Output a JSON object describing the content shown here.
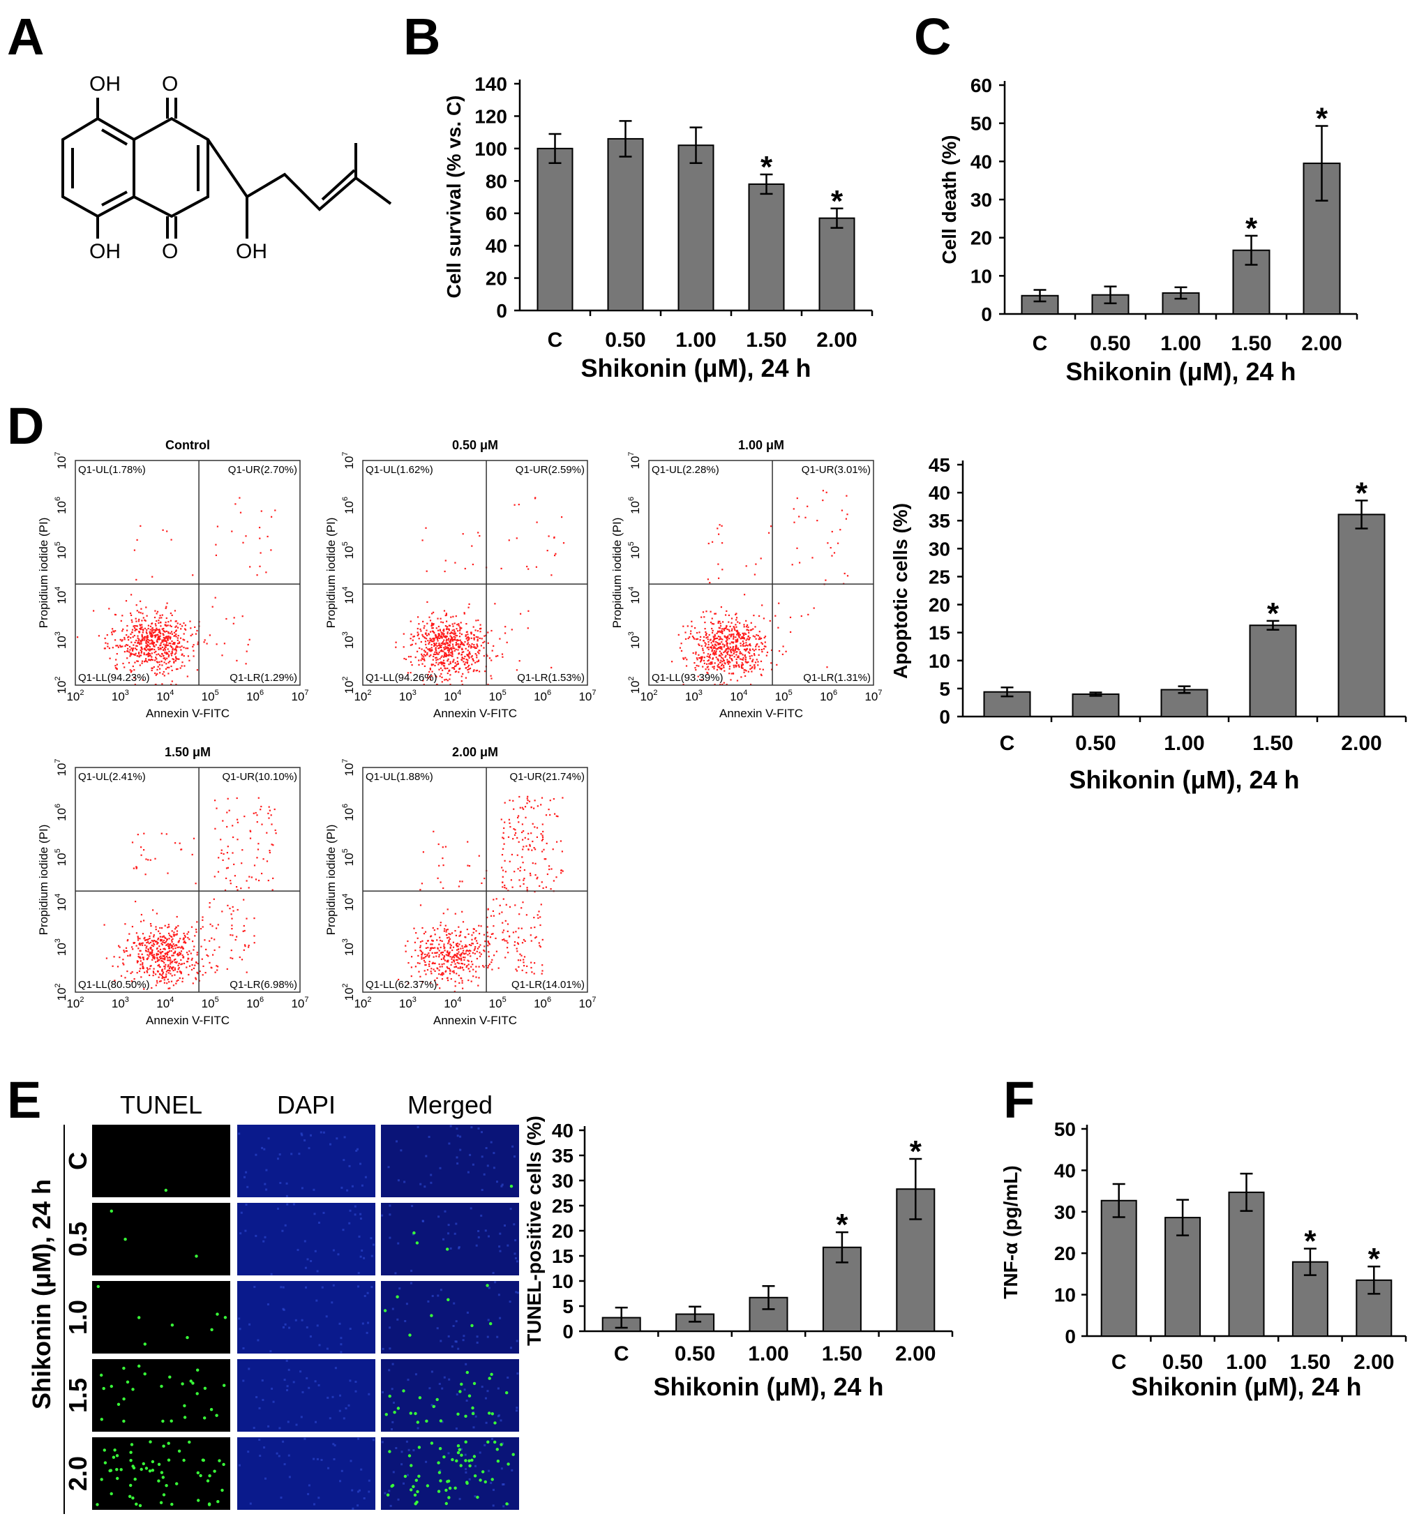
{
  "panels": {
    "A": {
      "letter": "A",
      "labels": [
        "OH",
        "O",
        "OH",
        "O",
        "OH"
      ]
    },
    "B": {
      "letter": "B"
    },
    "C": {
      "letter": "C"
    },
    "D": {
      "letter": "D"
    },
    "E": {
      "letter": "E"
    },
    "F": {
      "letter": "F"
    }
  },
  "flow": {
    "xlabel": "Annexin V-FITC",
    "ylabel": "Propidium iodide (PI)",
    "tick_exps": [
      "2",
      "3",
      "4",
      "5",
      "6",
      "7"
    ],
    "plots": [
      {
        "title": "Control",
        "ul": "Q1-UL(1.78%)",
        "ur": "Q1-UR(2.70%)",
        "ll": "Q1-LL(94.23%)",
        "lr": "Q1-LR(1.29%)"
      },
      {
        "title": "0.50 μM",
        "ul": "Q1-UL(1.62%)",
        "ur": "Q1-UR(2.59%)",
        "ll": "Q1-LL(94.26%)",
        "lr": "Q1-LR(1.53%)"
      },
      {
        "title": "1.00 μM",
        "ul": "Q1-UL(2.28%)",
        "ur": "Q1-UR(3.01%)",
        "ll": "Q1-LL(93.39%)",
        "lr": "Q1-LR(1.31%)"
      },
      {
        "title": "1.50 μM",
        "ul": "Q1-UL(2.41%)",
        "ur": "Q1-UR(10.10%)",
        "ll": "Q1-LL(80.50%)",
        "lr": "Q1-LR(6.98%)"
      },
      {
        "title": "2.00 μM",
        "ul": "Q1-UL(1.88%)",
        "ur": "Q1-UR(21.74%)",
        "ll": "Q1-LL(62.37%)",
        "lr": "Q1-LR(14.01%)"
      }
    ]
  },
  "micro": {
    "columns": [
      "TUNEL",
      "DAPI",
      "Merged"
    ],
    "rows": [
      "C",
      "0.5",
      "1.0",
      "1.5",
      "2.0"
    ],
    "side_label": "Shikonin (μM), 24 h"
  },
  "chart_data": [
    {
      "id": "B",
      "type": "bar",
      "categories": [
        "C",
        "0.50",
        "1.00",
        "1.50",
        "2.00"
      ],
      "values": [
        100,
        106,
        102,
        78,
        57
      ],
      "errors": [
        9,
        11,
        11,
        6,
        6
      ],
      "significant": [
        false,
        false,
        false,
        true,
        true
      ],
      "xlabel": "Shikonin (μM), 24 h",
      "ylabel": "Cell survival (% vs. C)",
      "ylim": [
        0,
        140
      ],
      "yticks": [
        0,
        20,
        40,
        60,
        80,
        100,
        120,
        140
      ]
    },
    {
      "id": "C",
      "type": "bar",
      "categories": [
        "C",
        "0.50",
        "1.00",
        "1.50",
        "2.00"
      ],
      "values": [
        4.8,
        5.0,
        5.5,
        16.7,
        39.5
      ],
      "errors": [
        1.5,
        2.2,
        1.5,
        3.8,
        9.8
      ],
      "significant": [
        false,
        false,
        false,
        true,
        true
      ],
      "xlabel": "Shikonin (μM), 24 h",
      "ylabel": "Cell death (%)",
      "ylim": [
        0,
        60
      ],
      "yticks": [
        0,
        10,
        20,
        30,
        40,
        50,
        60
      ]
    },
    {
      "id": "D",
      "type": "bar",
      "categories": [
        "C",
        "0.50",
        "1.00",
        "1.50",
        "2.00"
      ],
      "values": [
        4.4,
        4.0,
        4.8,
        16.3,
        36.1
      ],
      "errors": [
        0.8,
        0.3,
        0.6,
        0.8,
        2.5
      ],
      "significant": [
        false,
        false,
        false,
        true,
        true
      ],
      "xlabel": "Shikonin (μM), 24 h",
      "ylabel": "Apoptotic cells (%)",
      "ylim": [
        0,
        45
      ],
      "yticks": [
        0,
        5,
        10,
        15,
        20,
        25,
        30,
        35,
        40,
        45
      ]
    },
    {
      "id": "E",
      "type": "bar",
      "categories": [
        "C",
        "0.50",
        "1.00",
        "1.50",
        "2.00"
      ],
      "values": [
        2.7,
        3.4,
        6.7,
        16.7,
        28.3
      ],
      "errors": [
        2.0,
        1.5,
        2.3,
        3.0,
        6.0
      ],
      "significant": [
        false,
        false,
        false,
        true,
        true
      ],
      "xlabel": "Shikonin (μM), 24 h",
      "ylabel": "TUNEL-positive cells (%)",
      "ylim": [
        0,
        40
      ],
      "yticks": [
        0,
        5,
        10,
        15,
        20,
        25,
        30,
        35,
        40
      ]
    },
    {
      "id": "F",
      "type": "bar",
      "categories": [
        "C",
        "0.50",
        "1.00",
        "1.50",
        "2.00"
      ],
      "values": [
        32.7,
        28.6,
        34.7,
        17.9,
        13.5
      ],
      "errors": [
        4.0,
        4.3,
        4.5,
        3.2,
        3.3
      ],
      "significant": [
        false,
        false,
        false,
        true,
        true
      ],
      "xlabel": "Shikonin (μM), 24 h",
      "ylabel": "TNF-α (pg/mL)",
      "ylim": [
        0,
        50
      ],
      "yticks": [
        0,
        10,
        20,
        30,
        40,
        50
      ]
    }
  ]
}
